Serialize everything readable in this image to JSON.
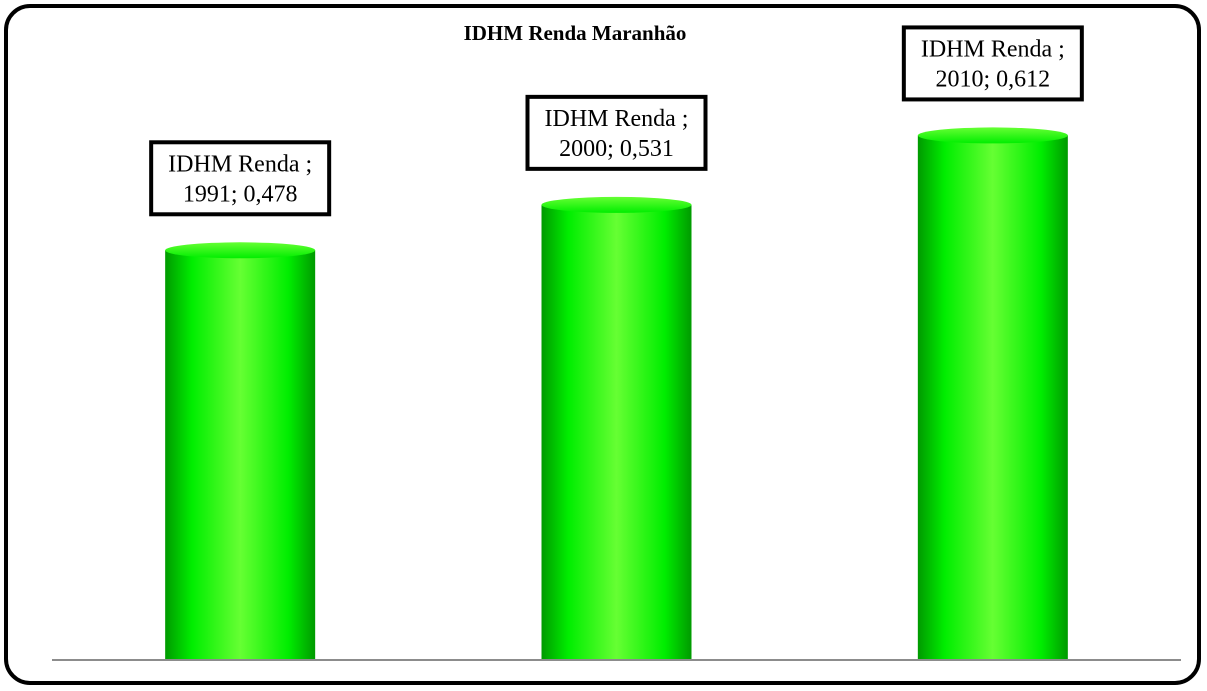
{
  "chart_data": {
    "type": "bar",
    "title": "IDHM Renda Maranhão",
    "xlabel": "",
    "ylabel": "",
    "categories": [
      "1991",
      "2000",
      "2010"
    ],
    "series": [
      {
        "name": "IDHM Renda",
        "values": [
          0.478,
          0.531,
          0.612
        ]
      }
    ],
    "data_labels": [
      [
        "IDHM Renda ;",
        "1991; 0,478"
      ],
      [
        "IDHM Renda ;",
        "2000; 0,531"
      ],
      [
        "IDHM Renda ;",
        "2010; 0,612"
      ]
    ],
    "ylim": [
      0,
      0.7
    ],
    "grid": false,
    "legend": "none",
    "colors": {
      "bar_light": "#66ff33",
      "bar_mid": "#00ee00",
      "bar_dark": "#009a00",
      "axis": "#8c8c8c",
      "frame": "#000000"
    }
  }
}
